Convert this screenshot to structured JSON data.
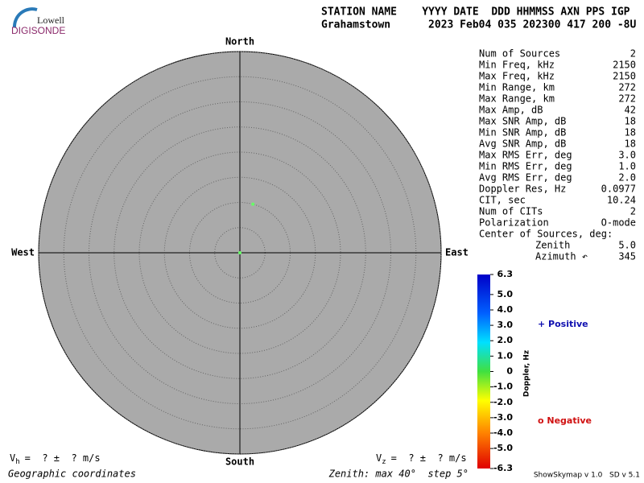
{
  "header": {
    "logo_top": "Lowell",
    "logo_bottom": "DIGISONDE",
    "columns": "STATION NAME    YYYY DATE  DDD HHMMSS AXN PPS IGP",
    "values": "Grahamstown      2023 Feb04 035 202300 417 200 -8U"
  },
  "chart_data": {
    "type": "skymap",
    "directions": {
      "north": "North",
      "south": "South",
      "east": "East",
      "west": "West"
    },
    "rlim": [
      0,
      40
    ],
    "rticks": [
      5,
      10,
      15,
      20,
      25,
      30,
      35,
      40
    ],
    "points": {
      "zenith": [
        0,
        10
      ],
      "azimuth": [
        0,
        15
      ],
      "color": "#66ff66"
    },
    "vh": {
      "symbol": "V",
      "subscript": "h",
      "text": "=  ? ±  ? m/s"
    },
    "vz": {
      "symbol": "V",
      "subscript": "z",
      "text": "=  ? ±  ? m/s"
    },
    "footer_left": "Geographic coordinates",
    "footer_right": "Zenith: max 40°  step 5°"
  },
  "stats": {
    "rows": [
      [
        "Num of Sources",
        "2"
      ],
      [
        "Min Freq, kHz",
        "2150"
      ],
      [
        "Max Freq, kHz",
        "2150"
      ],
      [
        "Min Range, km",
        "272"
      ],
      [
        "Max Range, km",
        "272"
      ],
      [
        "Max Amp, dB",
        "42"
      ],
      [
        "Max SNR Amp, dB",
        "18"
      ],
      [
        "Min SNR Amp, dB",
        "18"
      ],
      [
        "Avg SNR Amp, dB",
        "18"
      ],
      [
        "Max RMS Err, deg",
        "3.0"
      ],
      [
        "Min RMS Err, deg",
        "1.0"
      ],
      [
        "Avg RMS Err, deg",
        "2.0"
      ],
      [
        "Doppler Res, Hz",
        "0.0977"
      ],
      [
        "CIT, sec",
        "10.24"
      ],
      [
        "Num of CITs",
        "2"
      ],
      [
        "Polarization",
        "O-mode"
      ]
    ],
    "center_title": "Center of Sources, deg:",
    "center_rows": [
      [
        "Zenith",
        "5.0"
      ],
      [
        "Azimuth ↶",
        "345"
      ]
    ]
  },
  "colorbar": {
    "label": "Doppler, Hz",
    "lim": [
      -6.3,
      6.3
    ],
    "ticks": [
      6.3,
      {
        "value": 5,
        "label": "5.0"
      },
      {
        "value": 4,
        "label": "4.0"
      },
      {
        "value": 3,
        "label": "3.0"
      },
      {
        "value": 2,
        "label": "2.0"
      },
      {
        "value": 1,
        "label": "1.0"
      },
      0,
      {
        "value": -1,
        "label": "-1.0"
      },
      {
        "value": -2,
        "label": "-2.0"
      },
      {
        "value": -3,
        "label": "-3.0"
      },
      {
        "value": -4,
        "label": "-4.0"
      },
      {
        "value": -5,
        "label": "-5.0"
      },
      -6.3
    ],
    "positive": "+ Positive",
    "negative": "o Negative"
  },
  "version": "ShowSkymap v 1.0   SD v 5.1"
}
